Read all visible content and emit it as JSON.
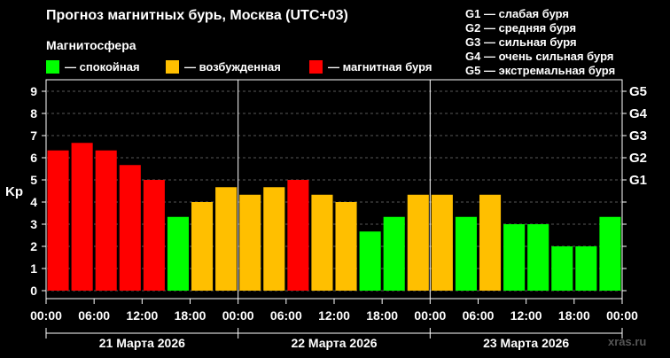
{
  "title": "Прогноз магнитных бурь, Москва (UTC+03)",
  "subtitle": "Магнитосфера",
  "legend": [
    {
      "label": "— спокойная",
      "color": "#00ff00"
    },
    {
      "label": "— возбужденная",
      "color": "#ffbf00"
    },
    {
      "label": "— магнитная буря",
      "color": "#ff0000"
    }
  ],
  "g_scale": [
    "G1 — слабая буря",
    "G2 — средняя буря",
    "G3 — сильная буря",
    "G4 — очень сильная буря",
    "G5 — экстремальная буря"
  ],
  "watermark": "xras.ru",
  "chart_data": {
    "type": "bar",
    "ylabel": "Kp",
    "ylim": [
      0,
      9
    ],
    "yticks": [
      "0",
      "1",
      "2",
      "3",
      "4",
      "5",
      "6",
      "7",
      "8",
      "9"
    ],
    "right_ticks": [
      {
        "label": "G1",
        "value": 5
      },
      {
        "label": "G2",
        "value": 6
      },
      {
        "label": "G3",
        "value": 7
      },
      {
        "label": "G4",
        "value": 8
      },
      {
        "label": "G5",
        "value": 9
      }
    ],
    "xticks": [
      "00:00",
      "06:00",
      "12:00",
      "18:00",
      "00:00",
      "06:00",
      "12:00",
      "18:00",
      "00:00",
      "06:00",
      "12:00",
      "18:00",
      "00:00"
    ],
    "days": [
      "21 Марта 2026",
      "22 Марта 2026",
      "23 Марта 2026"
    ],
    "interval_hours": 3,
    "values": [
      6.33,
      6.67,
      6.33,
      5.67,
      5.0,
      3.33,
      4.0,
      4.67,
      4.33,
      4.67,
      5.0,
      4.33,
      4.0,
      2.67,
      3.33,
      4.33,
      4.33,
      3.33,
      4.33,
      3.0,
      3.0,
      2.0,
      2.0,
      3.33
    ],
    "levels": [
      "storm",
      "storm",
      "storm",
      "storm",
      "storm",
      "quiet",
      "active",
      "active",
      "active",
      "active",
      "storm",
      "active",
      "active",
      "quiet",
      "quiet",
      "active",
      "active",
      "quiet",
      "active",
      "quiet",
      "quiet",
      "quiet",
      "quiet",
      "quiet"
    ],
    "colors": {
      "quiet": "#00ff00",
      "active": "#ffbf00",
      "storm": "#ff0000"
    },
    "grid": true
  }
}
